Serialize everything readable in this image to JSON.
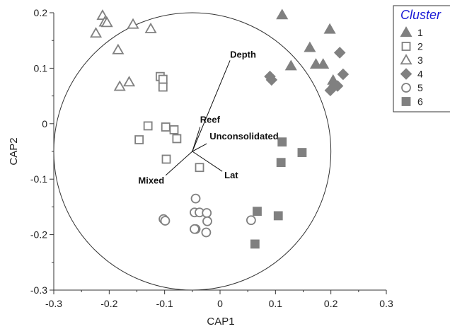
{
  "chart_data": {
    "type": "scatter",
    "xlabel": "CAP1",
    "ylabel": "CAP2",
    "xlim": [
      -0.3,
      0.3
    ],
    "ylim": [
      -0.3,
      0.2
    ],
    "x_ticks": [
      "-0.3",
      "-0.2",
      "-0.1",
      "0",
      "0.1",
      "0.2",
      "0.3"
    ],
    "y_ticks": [
      "0.2",
      "0.1",
      "0",
      "-0.1",
      "-0.2",
      "-0.3"
    ],
    "grid": false,
    "legend_position": "top-right",
    "legend_title": "Cluster",
    "colors": {
      "marker": "#808080",
      "legend_title": "#1a1ad6",
      "vector": "#111111"
    },
    "correlation_circle": {
      "center": [
        -0.05,
        -0.05
      ],
      "radius": 0.25
    },
    "vectors": [
      {
        "label": "Depth",
        "end": [
          0.018,
          0.114
        ]
      },
      {
        "label": "Reef",
        "end": [
          -0.036,
          -0.006
        ]
      },
      {
        "label": "Unconsolidated",
        "end": [
          -0.024,
          -0.036
        ]
      },
      {
        "label": "Lat",
        "end": [
          0.004,
          -0.086
        ]
      },
      {
        "label": "Mixed",
        "end": [
          -0.098,
          -0.093
        ]
      }
    ],
    "series": [
      {
        "name": "1",
        "marker": "triangle-filled",
        "points": [
          [
            0.112,
            0.196
          ],
          [
            0.198,
            0.17
          ],
          [
            0.162,
            0.137
          ],
          [
            0.128,
            0.104
          ],
          [
            0.173,
            0.107
          ],
          [
            0.186,
            0.107
          ],
          [
            0.204,
            0.078
          ]
        ]
      },
      {
        "name": "2",
        "marker": "square-open",
        "points": [
          [
            -0.108,
            0.085
          ],
          [
            -0.103,
            0.08
          ],
          [
            -0.103,
            0.066
          ],
          [
            -0.13,
            -0.004
          ],
          [
            -0.098,
            -0.006
          ],
          [
            -0.083,
            -0.011
          ],
          [
            -0.078,
            -0.027
          ],
          [
            -0.146,
            -0.029
          ],
          [
            -0.097,
            -0.064
          ],
          [
            -0.037,
            -0.079
          ]
        ]
      },
      {
        "name": "3",
        "marker": "triangle-open",
        "points": [
          [
            -0.212,
            0.195
          ],
          [
            -0.208,
            0.183
          ],
          [
            -0.204,
            0.182
          ],
          [
            -0.224,
            0.163
          ],
          [
            -0.157,
            0.179
          ],
          [
            -0.125,
            0.171
          ],
          [
            -0.184,
            0.133
          ],
          [
            -0.164,
            0.075
          ],
          [
            -0.181,
            0.067
          ]
        ]
      },
      {
        "name": "4",
        "marker": "diamond-filled",
        "points": [
          [
            0.216,
            0.128
          ],
          [
            0.222,
            0.089
          ],
          [
            0.09,
            0.085
          ],
          [
            0.093,
            0.079
          ],
          [
            0.199,
            0.06
          ],
          [
            0.206,
            0.068
          ],
          [
            0.212,
            0.068
          ]
        ]
      },
      {
        "name": "5",
        "marker": "circle-open",
        "points": [
          [
            -0.044,
            -0.135
          ],
          [
            -0.046,
            -0.16
          ],
          [
            -0.037,
            -0.16
          ],
          [
            -0.024,
            -0.161
          ],
          [
            -0.102,
            -0.172
          ],
          [
            -0.099,
            -0.175
          ],
          [
            -0.023,
            -0.176
          ],
          [
            -0.044,
            -0.19
          ],
          [
            -0.046,
            -0.19
          ],
          [
            -0.025,
            -0.196
          ],
          [
            0.056,
            -0.174
          ]
        ]
      },
      {
        "name": "6",
        "marker": "square-filled",
        "points": [
          [
            0.112,
            -0.033
          ],
          [
            0.148,
            -0.052
          ],
          [
            0.11,
            -0.07
          ],
          [
            0.067,
            -0.158
          ],
          [
            0.105,
            -0.166
          ],
          [
            0.063,
            -0.217
          ]
        ]
      }
    ]
  }
}
